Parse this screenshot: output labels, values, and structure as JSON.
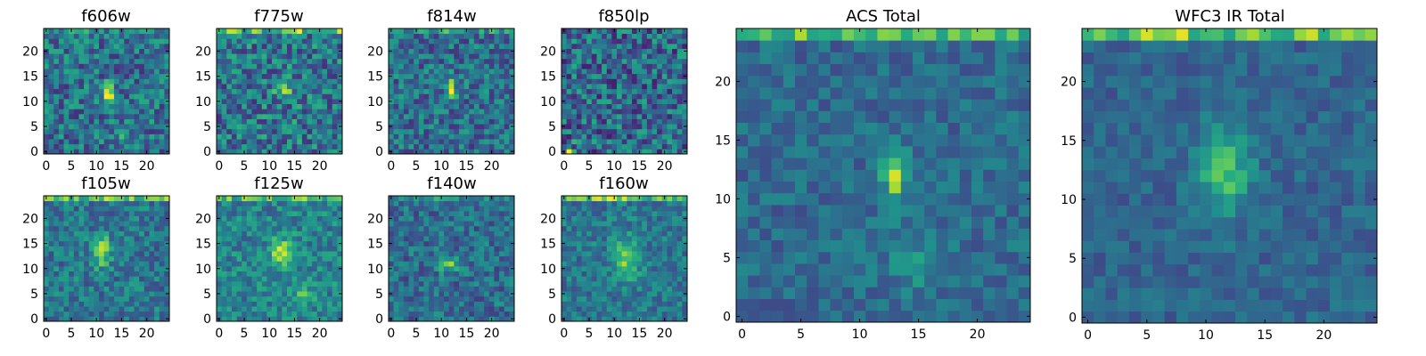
{
  "chart_data": [
    {
      "type": "heatmap",
      "title": "f606w",
      "grid_size": 25,
      "xlim": [
        -0.5,
        24.5
      ],
      "ylim": [
        -0.5,
        24.5
      ],
      "xticks": [
        0,
        5,
        10,
        15,
        20
      ],
      "yticks": [
        0,
        5,
        10,
        15,
        20
      ],
      "colormap": "viridis",
      "peaks": [
        {
          "x": 12.5,
          "y": 11.5,
          "amp": 0.55,
          "sx": 0.9,
          "sy": 1.4
        },
        {
          "x": 15,
          "y": 3,
          "amp": 0.25,
          "sx": 1.0,
          "sy": 0.8
        }
      ],
      "top_band": 0.1,
      "noise": 0.24,
      "base": 0.38,
      "seed": 11
    },
    {
      "type": "heatmap",
      "title": "f775w",
      "grid_size": 25,
      "xlim": [
        -0.5,
        24.5
      ],
      "ylim": [
        -0.5,
        24.5
      ],
      "xticks": [
        0,
        5,
        10,
        15,
        20
      ],
      "yticks": [
        0,
        5,
        10,
        15,
        20
      ],
      "colormap": "viridis",
      "peaks": [
        {
          "x": 13,
          "y": 12.5,
          "amp": 0.4,
          "sx": 1.2,
          "sy": 1.2
        }
      ],
      "top_band": 0.35,
      "noise": 0.26,
      "base": 0.4,
      "seed": 23
    },
    {
      "type": "heatmap",
      "title": "f814w",
      "grid_size": 25,
      "xlim": [
        -0.5,
        24.5
      ],
      "ylim": [
        -0.5,
        24.5
      ],
      "xticks": [
        0,
        5,
        10,
        15,
        20
      ],
      "yticks": [
        0,
        5,
        10,
        15,
        20
      ],
      "colormap": "viridis",
      "peaks": [
        {
          "x": 12,
          "y": 12.5,
          "amp": 0.6,
          "sx": 0.6,
          "sy": 1.4
        }
      ],
      "top_band": 0.15,
      "noise": 0.22,
      "base": 0.37,
      "seed": 37
    },
    {
      "type": "heatmap",
      "title": "f850lp",
      "grid_size": 25,
      "xlim": [
        -0.5,
        24.5
      ],
      "ylim": [
        -0.5,
        24.5
      ],
      "xticks": [
        0,
        5,
        10,
        15,
        20
      ],
      "yticks": [
        0,
        5,
        10,
        15,
        20
      ],
      "colormap": "viridis",
      "peaks": [
        {
          "x": 1,
          "y": 0,
          "amp": 0.6,
          "sx": 0.5,
          "sy": 0.5
        },
        {
          "x": 3,
          "y": 2,
          "amp": 0.25,
          "sx": 0.6,
          "sy": 0.6
        }
      ],
      "top_band": 0.0,
      "noise": 0.27,
      "base": 0.35,
      "seed": 41
    },
    {
      "type": "heatmap",
      "title": "f105w",
      "grid_size": 25,
      "xlim": [
        -0.5,
        24.5
      ],
      "ylim": [
        -0.5,
        24.5
      ],
      "xticks": [
        0,
        5,
        10,
        15,
        20
      ],
      "yticks": [
        0,
        5,
        10,
        15,
        20
      ],
      "colormap": "viridis",
      "peaks": [
        {
          "x": 11,
          "y": 13.5,
          "amp": 0.45,
          "sx": 1.2,
          "sy": 2.2
        }
      ],
      "top_band": 0.4,
      "noise": 0.18,
      "base": 0.4,
      "seed": 53
    },
    {
      "type": "heatmap",
      "title": "f125w",
      "grid_size": 25,
      "xlim": [
        -0.5,
        24.5
      ],
      "ylim": [
        -0.5,
        24.5
      ],
      "xticks": [
        0,
        5,
        10,
        15,
        20
      ],
      "yticks": [
        0,
        5,
        10,
        15,
        20
      ],
      "colormap": "viridis",
      "peaks": [
        {
          "x": 12.5,
          "y": 13,
          "amp": 0.45,
          "sx": 1.6,
          "sy": 2.0
        },
        {
          "x": 17,
          "y": 5,
          "amp": 0.2,
          "sx": 1.5,
          "sy": 1.5
        }
      ],
      "top_band": 0.3,
      "noise": 0.18,
      "base": 0.45,
      "seed": 61
    },
    {
      "type": "heatmap",
      "title": "f140w",
      "grid_size": 25,
      "xlim": [
        -0.5,
        24.5
      ],
      "ylim": [
        -0.5,
        24.5
      ],
      "xticks": [
        0,
        5,
        10,
        15,
        20
      ],
      "yticks": [
        0,
        5,
        10,
        15,
        20
      ],
      "colormap": "viridis",
      "peaks": [
        {
          "x": 11.5,
          "y": 11,
          "amp": 0.45,
          "sx": 1.5,
          "sy": 1.0
        }
      ],
      "top_band": 0.15,
      "noise": 0.18,
      "base": 0.36,
      "seed": 73
    },
    {
      "type": "heatmap",
      "title": "f160w",
      "grid_size": 25,
      "xlim": [
        -0.5,
        24.5
      ],
      "ylim": [
        -0.5,
        24.5
      ],
      "xticks": [
        0,
        5,
        10,
        15,
        20
      ],
      "yticks": [
        0,
        5,
        10,
        15,
        20
      ],
      "colormap": "viridis",
      "peaks": [
        {
          "x": 12.5,
          "y": 12,
          "amp": 0.35,
          "sx": 2.0,
          "sy": 3.0
        }
      ],
      "top_band": 0.4,
      "noise": 0.16,
      "base": 0.4,
      "seed": 89
    },
    {
      "type": "heatmap",
      "title": "ACS Total",
      "grid_size": 25,
      "xlim": [
        -0.5,
        24.5
      ],
      "ylim": [
        -0.5,
        24.5
      ],
      "xticks": [
        0,
        5,
        10,
        15,
        20
      ],
      "yticks": [
        0,
        5,
        10,
        15,
        20
      ],
      "colormap": "viridis",
      "peaks": [
        {
          "x": 13,
          "y": 12,
          "amp": 0.55,
          "sx": 0.7,
          "sy": 1.6
        },
        {
          "x": 15,
          "y": 4.5,
          "amp": 0.15,
          "sx": 2.0,
          "sy": 1.5
        }
      ],
      "top_band": 0.4,
      "noise": 0.12,
      "base": 0.35,
      "seed": 97
    },
    {
      "type": "heatmap",
      "title": "WFC3 IR Total",
      "grid_size": 25,
      "xlim": [
        -0.5,
        24.5
      ],
      "ylim": [
        -0.5,
        24.5
      ],
      "xticks": [
        0,
        5,
        10,
        15,
        20
      ],
      "yticks": [
        0,
        5,
        10,
        15,
        20
      ],
      "colormap": "viridis",
      "peaks": [
        {
          "x": 11.5,
          "y": 12.5,
          "amp": 0.4,
          "sx": 1.6,
          "sy": 2.6
        }
      ],
      "top_band": 0.45,
      "noise": 0.1,
      "base": 0.33,
      "seed": 103
    }
  ]
}
